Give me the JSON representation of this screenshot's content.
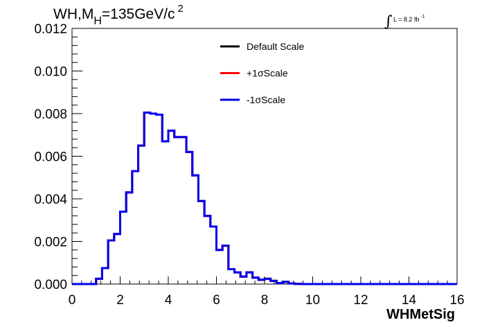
{
  "chart_data": {
    "type": "line",
    "subtype": "step-histogram",
    "title": {
      "prefix": "WH,M",
      "subscript": "H",
      "value": "=135GeV/c",
      "superscript": "2"
    },
    "luminosity": {
      "symbol": "∫",
      "text": "L = 8.2 fb",
      "superscript": "-1"
    },
    "xlabel": "WHMetSig",
    "ylabel": "",
    "xlim": [
      0,
      16
    ],
    "ylim": [
      0,
      0.012
    ],
    "xticks": [
      "0",
      "2",
      "4",
      "6",
      "8",
      "10",
      "12",
      "14",
      "16"
    ],
    "yticks": [
      "0.000",
      "0.002",
      "0.004",
      "0.006",
      "0.008",
      "0.010",
      "0.012"
    ],
    "grid": false,
    "legend_position": "top-center",
    "bin_edges": [
      0,
      0.5,
      1,
      1.25,
      1.5,
      1.75,
      2,
      2.25,
      2.5,
      2.75,
      3,
      3.25,
      3.5,
      3.75,
      4,
      4.25,
      4.5,
      4.75,
      5,
      5.25,
      5.5,
      5.75,
      6,
      6.25,
      6.5,
      6.75,
      7,
      7.25,
      7.5,
      7.75,
      8,
      8.25,
      8.5,
      8.75,
      9,
      9.25,
      9.5,
      9.75,
      10,
      10.5,
      11,
      12,
      13,
      14,
      15,
      16
    ],
    "series": [
      {
        "name": "Default Scale",
        "color": "#000000",
        "values": [
          0,
          0,
          0.00025,
          0.00075,
          0.00205,
          0.00235,
          0.0034,
          0.0043,
          0.0053,
          0.0065,
          0.00805,
          0.008,
          0.00795,
          0.0067,
          0.0072,
          0.0069,
          0.0069,
          0.0062,
          0.0051,
          0.0039,
          0.0032,
          0.0027,
          0.0016,
          0.0018,
          0.0007,
          0.00055,
          0.00035,
          0.00055,
          0.0003,
          0.0002,
          0.00025,
          0.00015,
          5e-05,
          0.0001,
          3e-05,
          1e-05,
          0,
          0,
          0,
          0,
          0,
          0,
          0,
          0,
          0
        ]
      },
      {
        "name": "+1σScale",
        "color": "#ff0000",
        "values": [
          0,
          0,
          0.00025,
          0.00075,
          0.00205,
          0.00235,
          0.0034,
          0.0043,
          0.0053,
          0.0065,
          0.00805,
          0.008,
          0.00795,
          0.0067,
          0.0072,
          0.0069,
          0.0069,
          0.0062,
          0.0051,
          0.0039,
          0.0032,
          0.0027,
          0.0016,
          0.0018,
          0.0007,
          0.00055,
          0.00035,
          0.00055,
          0.0003,
          0.0002,
          0.00025,
          0.00015,
          5e-05,
          0.0001,
          3e-05,
          1e-05,
          0,
          0,
          0,
          0,
          0,
          0,
          0,
          0,
          0
        ]
      },
      {
        "name": "-1σScale",
        "color": "#0000ee",
        "values": [
          0,
          0,
          0.00025,
          0.00075,
          0.00205,
          0.00235,
          0.0034,
          0.0043,
          0.0053,
          0.0065,
          0.00805,
          0.008,
          0.00795,
          0.0067,
          0.0072,
          0.0069,
          0.0069,
          0.0062,
          0.0051,
          0.0039,
          0.0032,
          0.0027,
          0.0016,
          0.0018,
          0.0007,
          0.00055,
          0.00035,
          0.00055,
          0.0003,
          0.0002,
          0.00025,
          0.00015,
          5e-05,
          0.0001,
          3e-05,
          1e-05,
          0,
          0,
          0,
          0,
          0,
          0,
          0,
          0,
          0
        ]
      }
    ]
  }
}
